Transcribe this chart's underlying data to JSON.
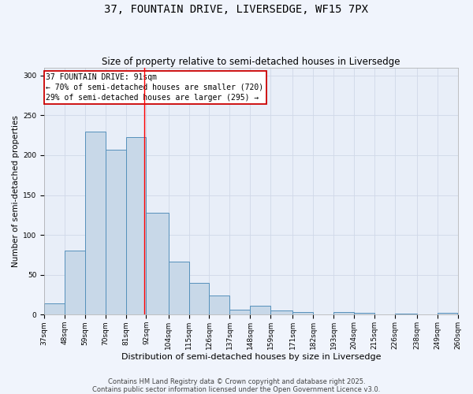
{
  "title1": "37, FOUNTAIN DRIVE, LIVERSEDGE, WF15 7PX",
  "title2": "Size of property relative to semi-detached houses in Liversedge",
  "xlabel": "Distribution of semi-detached houses by size in Liversedge",
  "ylabel": "Number of semi-detached properties",
  "bin_labels": [
    "37sqm",
    "48sqm",
    "59sqm",
    "70sqm",
    "81sqm",
    "92sqm",
    "104sqm",
    "115sqm",
    "126sqm",
    "137sqm",
    "148sqm",
    "159sqm",
    "171sqm",
    "182sqm",
    "193sqm",
    "204sqm",
    "215sqm",
    "226sqm",
    "238sqm",
    "249sqm",
    "260sqm"
  ],
  "bin_edges": [
    37,
    48,
    59,
    70,
    81,
    92,
    104,
    115,
    126,
    137,
    148,
    159,
    171,
    182,
    193,
    204,
    215,
    226,
    238,
    249,
    260
  ],
  "bar_heights": [
    14,
    80,
    230,
    207,
    223,
    128,
    67,
    40,
    24,
    6,
    11,
    5,
    3,
    0,
    3,
    2,
    0,
    1,
    0,
    2,
    0
  ],
  "bar_color": "#c8d8e8",
  "bar_edge_color": "#5590bb",
  "bar_edge_width": 0.7,
  "red_line_x": 91,
  "annotation_text": "37 FOUNTAIN DRIVE: 91sqm\n← 70% of semi-detached houses are smaller (720)\n29% of semi-detached houses are larger (295) →",
  "annotation_box_color": "#ffffff",
  "annotation_box_edge_color": "#cc0000",
  "ylim": [
    0,
    310
  ],
  "yticks": [
    0,
    50,
    100,
    150,
    200,
    250,
    300
  ],
  "grid_color": "#d0d8e8",
  "plot_bg_color": "#e8eef8",
  "fig_bg_color": "#f0f4fc",
  "footnote": "Contains HM Land Registry data © Crown copyright and database right 2025.\nContains public sector information licensed under the Open Government Licence v3.0.",
  "title1_fontsize": 10,
  "title2_fontsize": 8.5,
  "xlabel_fontsize": 8,
  "ylabel_fontsize": 7.5,
  "tick_fontsize": 6.5,
  "annotation_fontsize": 7,
  "footnote_fontsize": 6
}
